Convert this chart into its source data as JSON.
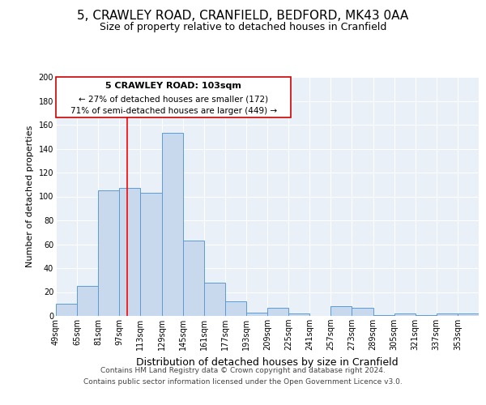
{
  "title": "5, CRAWLEY ROAD, CRANFIELD, BEDFORD, MK43 0AA",
  "subtitle": "Size of property relative to detached houses in Cranfield",
  "xlabel": "Distribution of detached houses by size in Cranfield",
  "ylabel": "Number of detached properties",
  "bin_edges": [
    49,
    65,
    81,
    97,
    113,
    129,
    145,
    161,
    177,
    193,
    209,
    225,
    241,
    257,
    273,
    289,
    305,
    321,
    337,
    353,
    369
  ],
  "bar_heights": [
    10,
    25,
    105,
    107,
    103,
    153,
    63,
    28,
    12,
    3,
    7,
    2,
    0,
    8,
    7,
    1,
    2,
    1,
    2,
    2
  ],
  "bar_color": "#c8d9ee",
  "bar_edge_color": "#5b9bd5",
  "red_line_x": 103,
  "ylim": [
    0,
    200
  ],
  "yticks": [
    0,
    20,
    40,
    60,
    80,
    100,
    120,
    140,
    160,
    180,
    200
  ],
  "annotation_title": "5 CRAWLEY ROAD: 103sqm",
  "annotation_line1": "← 27% of detached houses are smaller (172)",
  "annotation_line2": "71% of semi-detached houses are larger (449) →",
  "annotation_box_color": "#ffffff",
  "annotation_box_edge": "#cc0000",
  "background_color": "#eaf0f8",
  "footer_line1": "Contains HM Land Registry data © Crown copyright and database right 2024.",
  "footer_line2": "Contains public sector information licensed under the Open Government Licence v3.0.",
  "title_fontsize": 11,
  "subtitle_fontsize": 9,
  "xlabel_fontsize": 9,
  "ylabel_fontsize": 8,
  "tick_label_fontsize": 7,
  "footer_fontsize": 6.5,
  "annotation_title_fontsize": 8,
  "annotation_text_fontsize": 7.5
}
